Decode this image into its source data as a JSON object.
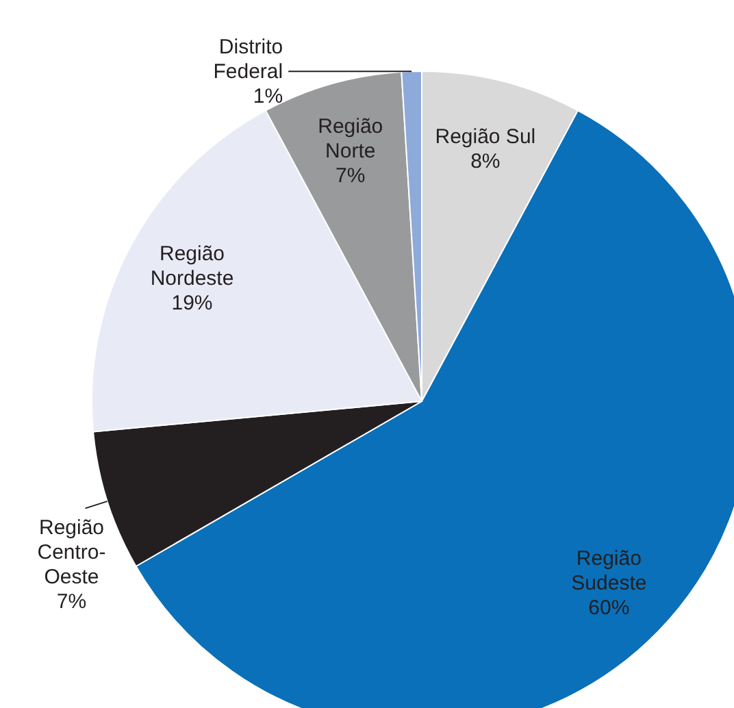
{
  "chart_data": {
    "type": "pie",
    "categories": [
      "Região Sul",
      "Região Sudeste",
      "Região Centro-Oeste",
      "Região Nordeste",
      "Região Norte",
      "Distrito Federal"
    ],
    "values": [
      8,
      60,
      7,
      19,
      7,
      1
    ],
    "colors": [
      "#d9d9d9",
      "#0a70b9",
      "#231f20",
      "#e8eaf6",
      "#999a9c",
      "#8eaadb"
    ],
    "value_labels": [
      "8%",
      "60%",
      "7%",
      "19%",
      "7%",
      "1%"
    ]
  }
}
